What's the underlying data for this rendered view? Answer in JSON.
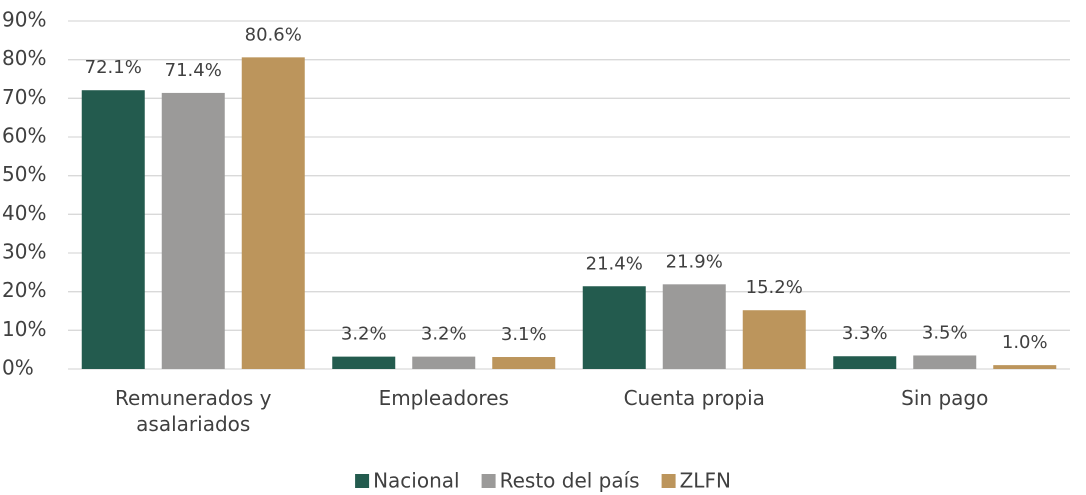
{
  "chart_data": {
    "type": "bar",
    "categories": [
      "Remunerados y asalariados",
      "Empleadores",
      "Cuenta propia",
      "Sin pago"
    ],
    "series": [
      {
        "name": "Nacional",
        "color": "#235b4e",
        "values": [
          72.1,
          3.2,
          21.4,
          3.3
        ],
        "value_labels": [
          "72.1%",
          "3.2%",
          "21.4%",
          "3.3%"
        ]
      },
      {
        "name": "Resto del país",
        "color": "#9b9a99",
        "values": [
          71.4,
          3.2,
          21.9,
          3.5
        ],
        "value_labels": [
          "71.4%",
          "3.2%",
          "21.9%",
          "3.5%"
        ]
      },
      {
        "name": "ZLFN",
        "color": "#bc955c",
        "values": [
          80.6,
          3.1,
          15.2,
          1.0
        ],
        "value_labels": [
          "80.6%",
          "3.1%",
          "15.2%",
          "1.0%"
        ]
      }
    ],
    "ylim": [
      0,
      90
    ],
    "yticks": [
      {
        "value": 0,
        "label": "0%"
      },
      {
        "value": 10,
        "label": "10%"
      },
      {
        "value": 20,
        "label": "20%"
      },
      {
        "value": 30,
        "label": "30%"
      },
      {
        "value": 40,
        "label": "40%"
      },
      {
        "value": 50,
        "label": "50%"
      },
      {
        "value": 60,
        "label": "60%"
      },
      {
        "value": 70,
        "label": "70%"
      },
      {
        "value": 80,
        "label": "80%"
      },
      {
        "value": 90,
        "label": "90%"
      }
    ],
    "grid": true,
    "legend": "bottom"
  }
}
